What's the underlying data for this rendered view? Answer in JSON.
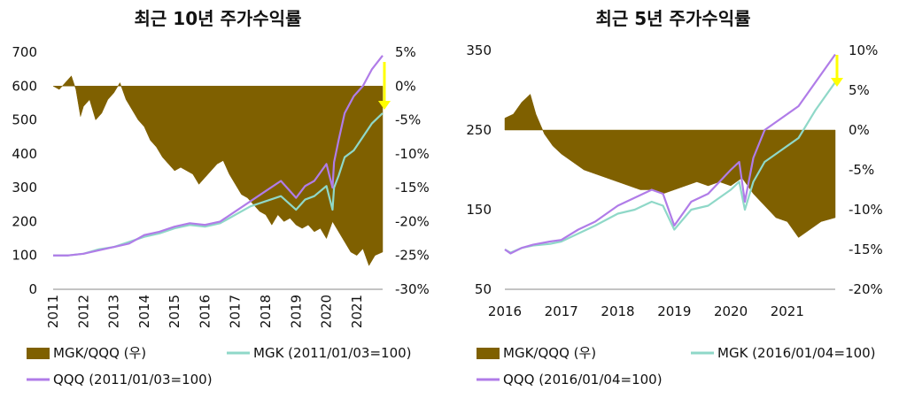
{
  "colors": {
    "ratio": "#7f6000",
    "mgk": "#8fd8c8",
    "qqq": "#b07ce8",
    "arrow": "#ffff00"
  },
  "chart_data": [
    {
      "type": "line+area",
      "title": "최근 10년 주가수익률",
      "x_ticks": [
        "2011",
        "2012",
        "2013",
        "2014",
        "2015",
        "2016",
        "2017",
        "2018",
        "2019",
        "2020",
        "2021"
      ],
      "x_range": [
        2011.0,
        2021.85
      ],
      "y_left_ticks": [
        "0",
        "100",
        "200",
        "300",
        "400",
        "500",
        "600",
        "700"
      ],
      "y_left_range": [
        0,
        700
      ],
      "y_right_ticks": [
        "5%",
        "0%",
        "-5%",
        "-10%",
        "-15%",
        "-20%",
        "-25%",
        "-30%"
      ],
      "y_right_range": [
        -30,
        5
      ],
      "legend_position": "bottom",
      "series": [
        {
          "name": "MGK/QQQ (우)",
          "kind": "area",
          "axis": "right",
          "x": [
            2011.0,
            2011.2,
            2011.4,
            2011.6,
            2011.75,
            2011.9,
            2012.0,
            2012.2,
            2012.4,
            2012.6,
            2012.8,
            2013.0,
            2013.2,
            2013.4,
            2013.6,
            2013.8,
            2014.0,
            2014.2,
            2014.4,
            2014.6,
            2014.8,
            2015.0,
            2015.2,
            2015.4,
            2015.6,
            2015.8,
            2016.0,
            2016.2,
            2016.4,
            2016.6,
            2016.8,
            2017.0,
            2017.2,
            2017.4,
            2017.6,
            2017.8,
            2018.0,
            2018.2,
            2018.4,
            2018.6,
            2018.8,
            2019.0,
            2019.2,
            2019.4,
            2019.6,
            2019.8,
            2020.0,
            2020.2,
            2020.4,
            2020.6,
            2020.8,
            2021.0,
            2021.2,
            2021.4,
            2021.6,
            2021.85
          ],
          "y": [
            0,
            -0.5,
            0.5,
            1.5,
            -0.5,
            -4.5,
            -3,
            -2,
            -5,
            -4,
            -2,
            -1,
            0.5,
            -2,
            -3.5,
            -5,
            -6,
            -8,
            -9,
            -10.5,
            -11.5,
            -12.5,
            -12,
            -12.5,
            -13,
            -14.5,
            -13.5,
            -12.5,
            -11.5,
            -11,
            -13,
            -14.5,
            -16,
            -16.5,
            -17.5,
            -18.5,
            -19,
            -20.5,
            -19,
            -20,
            -19.5,
            -20.5,
            -21,
            -20.5,
            -21.5,
            -21,
            -22.5,
            -20,
            -21.5,
            -23,
            -24.5,
            -25,
            -24,
            -26.5,
            -25,
            -24.5
          ]
        },
        {
          "name": "MGK (2011/01/03=100)",
          "kind": "line",
          "axis": "left",
          "x": [
            2011.0,
            2011.5,
            2012.0,
            2012.5,
            2013.0,
            2013.5,
            2014.0,
            2014.5,
            2015.0,
            2015.5,
            2016.0,
            2016.5,
            2017.0,
            2017.5,
            2018.0,
            2018.5,
            2019.0,
            2019.3,
            2019.6,
            2020.0,
            2020.2,
            2020.25,
            2020.4,
            2020.6,
            2020.9,
            2021.2,
            2021.5,
            2021.85
          ],
          "y": [
            100,
            100,
            105,
            118,
            125,
            140,
            155,
            165,
            180,
            190,
            185,
            195,
            220,
            245,
            260,
            275,
            235,
            265,
            275,
            305,
            235,
            300,
            335,
            390,
            410,
            450,
            490,
            520
          ]
        },
        {
          "name": "QQQ (2011/01/03=100)",
          "kind": "line",
          "axis": "left",
          "x": [
            2011.0,
            2011.5,
            2012.0,
            2012.5,
            2013.0,
            2013.5,
            2014.0,
            2014.5,
            2015.0,
            2015.5,
            2016.0,
            2016.5,
            2017.0,
            2017.5,
            2018.0,
            2018.5,
            2019.0,
            2019.3,
            2019.6,
            2020.0,
            2020.2,
            2020.25,
            2020.4,
            2020.6,
            2020.9,
            2021.2,
            2021.5,
            2021.85
          ],
          "y": [
            100,
            100,
            105,
            115,
            125,
            135,
            160,
            170,
            185,
            195,
            190,
            200,
            230,
            260,
            290,
            320,
            270,
            305,
            320,
            370,
            300,
            375,
            440,
            520,
            570,
            600,
            650,
            690
          ]
        }
      ]
    },
    {
      "type": "line+area",
      "title": "최근 5년 주가수익률",
      "x_ticks": [
        "2016",
        "2017",
        "2018",
        "2019",
        "2020",
        "2021"
      ],
      "x_range": [
        2016.0,
        2021.85
      ],
      "y_left_ticks": [
        "50",
        "150",
        "250",
        "350"
      ],
      "y_left_range": [
        50,
        350
      ],
      "y_right_ticks": [
        "10%",
        "5%",
        "0%",
        "-5%",
        "-10%",
        "-15%",
        "-20%"
      ],
      "y_right_range": [
        -20,
        10
      ],
      "legend_position": "bottom",
      "series": [
        {
          "name": "MGK/QQQ (우)",
          "kind": "area",
          "axis": "right",
          "x": [
            2016.0,
            2016.15,
            2016.3,
            2016.45,
            2016.55,
            2016.7,
            2016.85,
            2017.0,
            2017.2,
            2017.4,
            2017.6,
            2017.8,
            2018.0,
            2018.2,
            2018.4,
            2018.6,
            2018.8,
            2019.0,
            2019.2,
            2019.4,
            2019.6,
            2019.8,
            2020.0,
            2020.2,
            2020.4,
            2020.6,
            2020.8,
            2021.0,
            2021.2,
            2021.4,
            2021.6,
            2021.85
          ],
          "y": [
            1.5,
            2,
            3.5,
            4.5,
            2,
            -0.5,
            -2,
            -3,
            -4,
            -5,
            -5.5,
            -6,
            -6.5,
            -7,
            -7.5,
            -7.5,
            -8,
            -7.5,
            -7,
            -6.5,
            -7,
            -6.5,
            -7,
            -6,
            -8,
            -9.5,
            -11,
            -11.5,
            -13.5,
            -12.5,
            -11.5,
            -11
          ]
        },
        {
          "name": "MGK (2016/01/04=100)",
          "kind": "line",
          "axis": "left",
          "x": [
            2016.0,
            2016.1,
            2016.3,
            2016.5,
            2016.8,
            2017.0,
            2017.3,
            2017.6,
            2018.0,
            2018.3,
            2018.6,
            2018.8,
            2019.0,
            2019.3,
            2019.6,
            2020.0,
            2020.15,
            2020.25,
            2020.4,
            2020.6,
            2020.9,
            2021.2,
            2021.5,
            2021.85
          ],
          "y": [
            100,
            96,
            102,
            105,
            107,
            110,
            120,
            130,
            145,
            150,
            160,
            155,
            125,
            150,
            155,
            175,
            185,
            150,
            185,
            210,
            225,
            240,
            275,
            310
          ]
        },
        {
          "name": "QQQ (2016/01/04=100)",
          "kind": "line",
          "axis": "left",
          "x": [
            2016.0,
            2016.1,
            2016.3,
            2016.5,
            2016.8,
            2017.0,
            2017.3,
            2017.6,
            2018.0,
            2018.3,
            2018.6,
            2018.8,
            2019.0,
            2019.3,
            2019.6,
            2020.0,
            2020.15,
            2020.25,
            2020.4,
            2020.6,
            2020.9,
            2021.2,
            2021.5,
            2021.85
          ],
          "y": [
            100,
            95,
            102,
            106,
            110,
            112,
            125,
            135,
            155,
            165,
            175,
            170,
            130,
            160,
            170,
            200,
            210,
            160,
            215,
            250,
            265,
            280,
            310,
            345
          ]
        }
      ]
    }
  ]
}
